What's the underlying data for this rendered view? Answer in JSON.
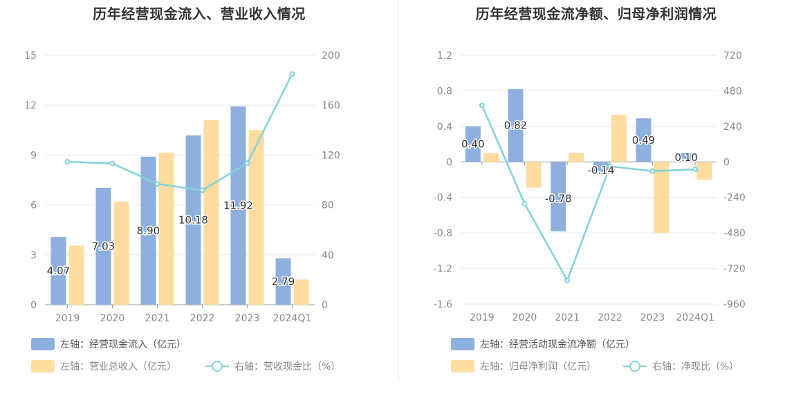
{
  "colors": {
    "bar_primary": "#8eb0de",
    "bar_secondary": "#ffdca0",
    "line": "#7fd3d8",
    "grid": "#e4e8f2",
    "axis_text": "#888888",
    "label_text": "#333333"
  },
  "chart_data": [
    {
      "type": "bar",
      "title": "历年经营现金流入、营业收入情况",
      "categories": [
        "2019",
        "2020",
        "2021",
        "2022",
        "2023",
        "2024Q1"
      ],
      "left_axis": {
        "ticks": [
          "0",
          "3",
          "6",
          "9",
          "12",
          "15"
        ],
        "ylim": [
          0,
          15
        ]
      },
      "right_axis": {
        "ticks": [
          "0",
          "40",
          "80",
          "120",
          "160",
          "200"
        ],
        "ylim": [
          0,
          200
        ]
      },
      "series": [
        {
          "name": "左轴：经营现金流入（亿元）",
          "axis": "left",
          "kind": "bar",
          "color": "#8eb0de",
          "values": [
            4.07,
            7.03,
            8.9,
            10.18,
            11.92,
            2.79
          ],
          "labels": [
            "4.07",
            "7.03",
            "8.90",
            "10.18",
            "11.92",
            "2.79"
          ]
        },
        {
          "name": "左轴：营业总收入（亿元）",
          "axis": "left",
          "kind": "bar",
          "color": "#ffdca0",
          "values": [
            3.55,
            6.2,
            9.15,
            11.1,
            10.5,
            1.52
          ]
        },
        {
          "name": "右轴：营收现金比（%）",
          "axis": "right",
          "kind": "line",
          "color": "#7fd3d8",
          "values": [
            114.6,
            113.3,
            96.9,
            91.8,
            113.5,
            185
          ]
        }
      ],
      "grid": true,
      "legend": "bottom"
    },
    {
      "type": "bar",
      "title": "历年经营现金流净额、归母净利润情况",
      "categories": [
        "2019",
        "2020",
        "2021",
        "2022",
        "2023",
        "2024Q1"
      ],
      "left_axis": {
        "ticks": [
          "-1.6",
          "-1.2",
          "-0.8",
          "-0.4",
          "0",
          "0.4",
          "0.8",
          "1.2"
        ],
        "ylim": [
          -1.6,
          1.2
        ]
      },
      "right_axis": {
        "ticks": [
          "-960",
          "-720",
          "-480",
          "-240",
          "0",
          "240",
          "480",
          "720"
        ],
        "ylim": [
          -960,
          720
        ]
      },
      "series": [
        {
          "name": "左轴：经营活动现金流净额（亿元）",
          "axis": "left",
          "kind": "bar",
          "color": "#8eb0de",
          "values": [
            0.4,
            0.82,
            -0.78,
            -0.14,
            0.49,
            0.1
          ],
          "labels": [
            "0.40",
            "0.82",
            "-0.78",
            "-0.14",
            "0.49",
            "0.10"
          ]
        },
        {
          "name": "左轴：归母净利润（亿元）",
          "axis": "left",
          "kind": "bar",
          "color": "#ffdca0",
          "values": [
            0.1,
            -0.29,
            0.1,
            0.53,
            -0.8,
            -0.2
          ]
        },
        {
          "name": "右轴：净现比（%）",
          "axis": "right",
          "kind": "line",
          "color": "#7fd3d8",
          "values": [
            382,
            -282,
            -800,
            -30,
            -62,
            -50
          ]
        }
      ],
      "grid": true,
      "legend": "bottom"
    }
  ]
}
